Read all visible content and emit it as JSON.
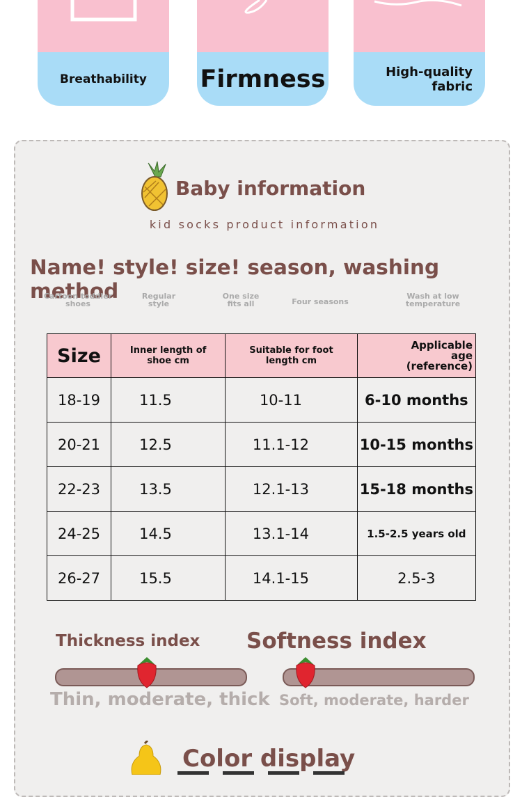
{
  "features": [
    "Breathability",
    "Firmness",
    "High-quality fabric"
  ],
  "section": {
    "title": "Baby information",
    "subtitle": "kid socks product information"
  },
  "heading": "Name! style! size! season, washing method",
  "attributes": [
    "Cartoon toddler shoes",
    "Regular style",
    "One size fits all",
    "Four seasons",
    "Wash at low temperature"
  ],
  "table": {
    "header": [
      "Size",
      "Inner length of shoe cm",
      "Suitable for foot length cm",
      "Applicable age (reference)"
    ],
    "rows": [
      [
        "18-19",
        "11.5",
        "10-11",
        "6-10 months"
      ],
      [
        "20-21",
        "12.5",
        "11.1-12",
        "10-15 months"
      ],
      [
        "22-23",
        "13.5",
        "12.1-13",
        "15-18 months"
      ],
      [
        "24-25",
        "14.5",
        "13.1-14",
        "1.5-2.5 years old"
      ],
      [
        "26-27",
        "15.5",
        "14.1-15",
        "2.5-3"
      ]
    ]
  },
  "indices": [
    {
      "title": "Thickness index",
      "scale": "Thin, moderate, thick"
    },
    {
      "title": "Softness index",
      "scale": "Soft, moderate, harder"
    }
  ],
  "color_display": {
    "title": "Color display"
  }
}
